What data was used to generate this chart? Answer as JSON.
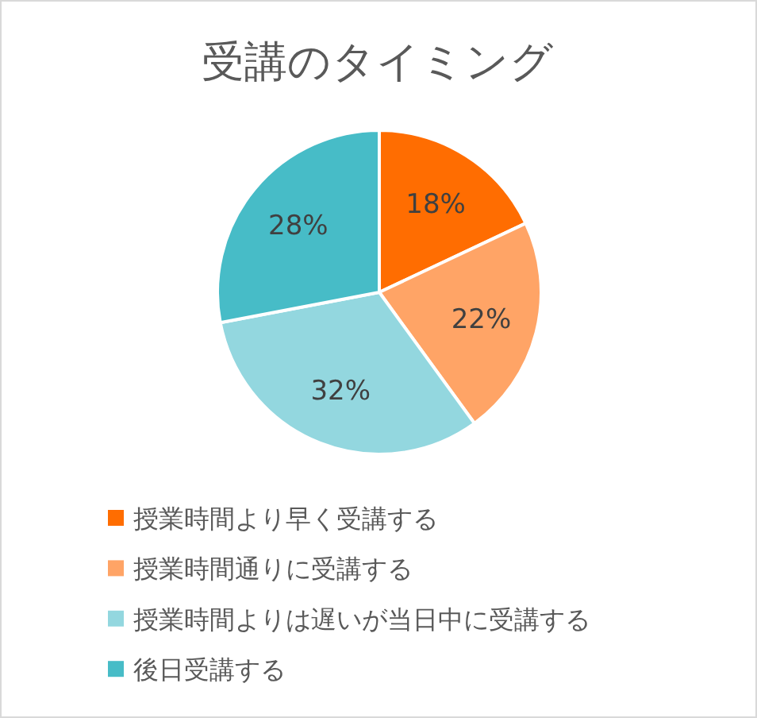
{
  "chart_data": {
    "type": "pie",
    "title": "受講のタイミング",
    "categories": [
      "授業時間より早く受講する",
      "授業時間通りに受講する",
      "授業時間よりは遅いが当日中に受講する",
      "後日受講する"
    ],
    "values": [
      18,
      22,
      32,
      28
    ],
    "colors": [
      "#ff6d01",
      "#ffa466",
      "#93d7df",
      "#47bcc7"
    ],
    "value_labels": [
      "18%",
      "22%",
      "32%",
      "28%"
    ],
    "legend": "bottom"
  }
}
